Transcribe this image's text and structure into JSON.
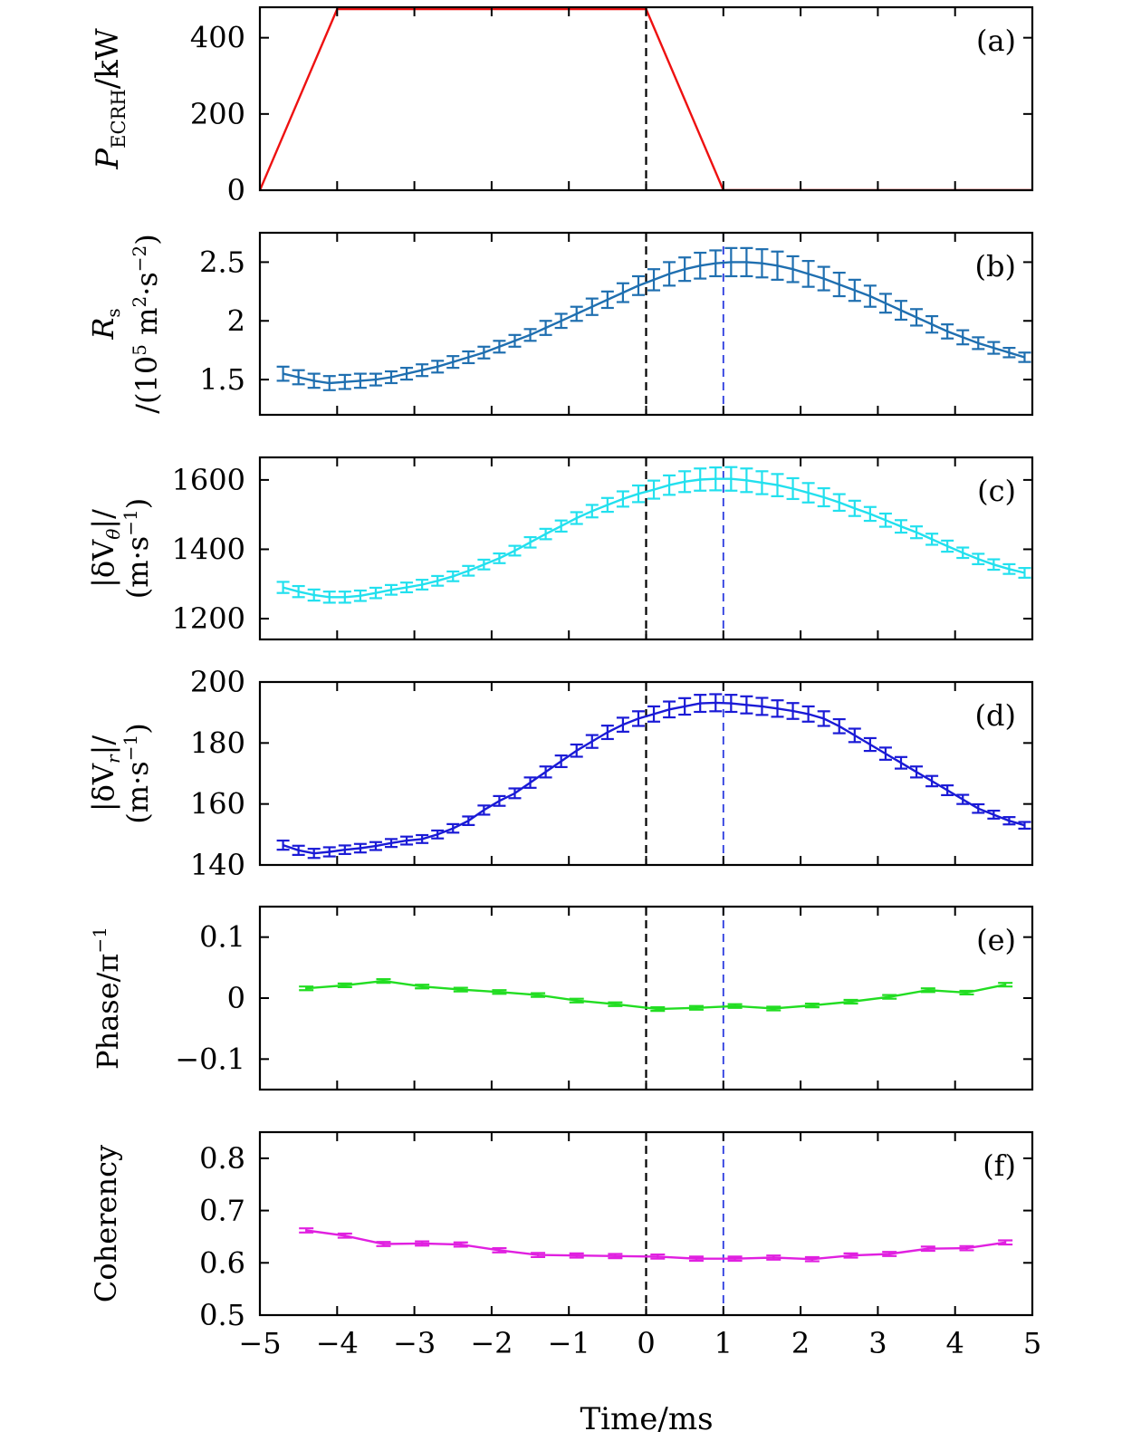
{
  "chart_data": [
    {
      "id": "a",
      "type": "line",
      "tag": "(a)",
      "ylabel": {
        "main": "P",
        "sub": "ECRH",
        "rest": "/kW"
      },
      "xlim": [
        -5,
        5
      ],
      "ylim": [
        0,
        480
      ],
      "yticks": [
        0,
        200,
        400
      ],
      "color": "#ee1111",
      "errorbars": false,
      "x": [
        -5,
        -4,
        0,
        1,
        5
      ],
      "y": [
        0,
        475,
        475,
        0,
        0
      ],
      "err": []
    },
    {
      "id": "b",
      "type": "line",
      "tag": "(b)",
      "ylabel": {
        "line1_main": "R",
        "line1_sub": "s",
        "line2": "/(10",
        "line2_exp": "5",
        "line2_rest": " m",
        "line2_exp2": "2",
        "line2_rest2": "·s",
        "line2_exp3": "−2",
        "line2_end": ")"
      },
      "xlim": [
        -5,
        5
      ],
      "ylim": [
        1.2,
        2.75
      ],
      "yticks": [
        1.5,
        2.0,
        2.5
      ],
      "color": "#1f6fb0",
      "errorbars": true,
      "x": [
        -4.7,
        -4.5,
        -4.3,
        -4.1,
        -3.9,
        -3.7,
        -3.5,
        -3.3,
        -3.1,
        -2.9,
        -2.7,
        -2.5,
        -2.3,
        -2.1,
        -1.9,
        -1.7,
        -1.5,
        -1.3,
        -1.1,
        -0.9,
        -0.7,
        -0.5,
        -0.3,
        -0.1,
        0.1,
        0.3,
        0.5,
        0.7,
        0.9,
        1.1,
        1.3,
        1.5,
        1.7,
        1.9,
        2.1,
        2.3,
        2.5,
        2.7,
        2.9,
        3.1,
        3.3,
        3.5,
        3.7,
        3.9,
        4.1,
        4.3,
        4.5,
        4.7,
        4.9
      ],
      "y": [
        1.55,
        1.52,
        1.49,
        1.47,
        1.48,
        1.49,
        1.5,
        1.52,
        1.55,
        1.58,
        1.61,
        1.65,
        1.69,
        1.73,
        1.78,
        1.83,
        1.88,
        1.94,
        2.0,
        2.06,
        2.12,
        2.18,
        2.24,
        2.3,
        2.35,
        2.4,
        2.44,
        2.47,
        2.49,
        2.5,
        2.5,
        2.49,
        2.47,
        2.44,
        2.4,
        2.36,
        2.31,
        2.26,
        2.21,
        2.15,
        2.09,
        2.03,
        1.97,
        1.91,
        1.86,
        1.81,
        1.77,
        1.73,
        1.69
      ],
      "err": [
        0.06,
        0.06,
        0.06,
        0.06,
        0.06,
        0.06,
        0.05,
        0.05,
        0.05,
        0.05,
        0.05,
        0.05,
        0.05,
        0.05,
        0.05,
        0.05,
        0.05,
        0.06,
        0.06,
        0.06,
        0.07,
        0.07,
        0.08,
        0.08,
        0.09,
        0.1,
        0.1,
        0.11,
        0.11,
        0.12,
        0.12,
        0.12,
        0.12,
        0.11,
        0.11,
        0.1,
        0.1,
        0.09,
        0.09,
        0.08,
        0.08,
        0.07,
        0.07,
        0.06,
        0.06,
        0.05,
        0.05,
        0.04,
        0.04
      ]
    },
    {
      "id": "c",
      "type": "line",
      "tag": "(c)",
      "ylabel": {
        "line1": "|δV",
        "line1_sub": "θ",
        "line1_end": "|/",
        "line2": "(m·s",
        "line2_exp": "−1",
        "line2_end": ")"
      },
      "xlim": [
        -5,
        5
      ],
      "ylim": [
        1140,
        1665
      ],
      "yticks": [
        1200,
        1400,
        1600
      ],
      "color": "#22e0ee",
      "errorbars": true,
      "x": [
        -4.7,
        -4.5,
        -4.3,
        -4.1,
        -3.9,
        -3.7,
        -3.5,
        -3.3,
        -3.1,
        -2.9,
        -2.7,
        -2.5,
        -2.3,
        -2.1,
        -1.9,
        -1.7,
        -1.5,
        -1.3,
        -1.1,
        -0.9,
        -0.7,
        -0.5,
        -0.3,
        -0.1,
        0.1,
        0.3,
        0.5,
        0.7,
        0.9,
        1.1,
        1.3,
        1.5,
        1.7,
        1.9,
        2.1,
        2.3,
        2.5,
        2.7,
        2.9,
        3.1,
        3.3,
        3.5,
        3.7,
        3.9,
        4.1,
        4.3,
        4.5,
        4.7,
        4.9
      ],
      "y": [
        1290,
        1278,
        1268,
        1262,
        1262,
        1266,
        1274,
        1283,
        1290,
        1298,
        1309,
        1322,
        1338,
        1356,
        1374,
        1396,
        1420,
        1444,
        1467,
        1490,
        1510,
        1528,
        1545,
        1560,
        1572,
        1585,
        1595,
        1601,
        1603,
        1603,
        1599,
        1592,
        1585,
        1575,
        1563,
        1550,
        1535,
        1518,
        1502,
        1484,
        1466,
        1449,
        1429,
        1409,
        1390,
        1372,
        1356,
        1343,
        1332
      ],
      "err": [
        16,
        16,
        16,
        16,
        16,
        15,
        15,
        14,
        14,
        14,
        14,
        14,
        14,
        14,
        14,
        14,
        15,
        15,
        16,
        17,
        18,
        20,
        22,
        24,
        26,
        28,
        30,
        32,
        33,
        34,
        34,
        33,
        32,
        30,
        28,
        26,
        24,
        22,
        20,
        19,
        18,
        17,
        16,
        16,
        15,
        15,
        15,
        14,
        14
      ]
    },
    {
      "id": "d",
      "type": "line",
      "tag": "(d)",
      "ylabel": {
        "line1": "|δV",
        "line1_sub": "r",
        "line1_end": "|/",
        "line2": "(m·s",
        "line2_exp": "−1",
        "line2_end": ")"
      },
      "xlim": [
        -5,
        5
      ],
      "ylim": [
        140,
        200
      ],
      "yticks": [
        140,
        160,
        180,
        200
      ],
      "color": "#1a1ad6",
      "errorbars": true,
      "x": [
        -4.7,
        -4.5,
        -4.3,
        -4.1,
        -3.9,
        -3.7,
        -3.5,
        -3.3,
        -3.1,
        -2.9,
        -2.7,
        -2.5,
        -2.3,
        -2.1,
        -1.9,
        -1.7,
        -1.5,
        -1.3,
        -1.1,
        -0.9,
        -0.7,
        -0.5,
        -0.3,
        -0.1,
        0.1,
        0.3,
        0.5,
        0.7,
        0.9,
        1.1,
        1.3,
        1.5,
        1.7,
        1.9,
        2.1,
        2.3,
        2.5,
        2.7,
        2.9,
        3.1,
        3.3,
        3.5,
        3.7,
        3.9,
        4.1,
        4.3,
        4.5,
        4.7,
        4.9
      ],
      "y": [
        146.5,
        144.8,
        143.8,
        144.3,
        145.0,
        145.5,
        146.2,
        147.2,
        148.0,
        148.5,
        150.0,
        152.0,
        154.5,
        158.0,
        161.0,
        163.5,
        167.0,
        170.5,
        174.0,
        177.5,
        180.5,
        183.5,
        186.0,
        188.0,
        189.5,
        191.0,
        192.0,
        193.0,
        193.2,
        193.0,
        192.5,
        192.0,
        191.3,
        190.5,
        189.5,
        188.0,
        185.5,
        182.5,
        179.5,
        176.5,
        173.5,
        170.5,
        167.5,
        164.5,
        161.5,
        158.5,
        156.5,
        154.5,
        153.0
      ],
      "err": [
        1.5,
        1.5,
        1.5,
        1.5,
        1.4,
        1.4,
        1.3,
        1.3,
        1.3,
        1.3,
        1.3,
        1.4,
        1.4,
        1.5,
        1.6,
        1.6,
        1.7,
        1.8,
        1.9,
        2.0,
        2.1,
        2.2,
        2.3,
        2.4,
        2.5,
        2.6,
        2.7,
        2.8,
        2.8,
        2.8,
        2.8,
        2.8,
        2.7,
        2.6,
        2.5,
        2.4,
        2.3,
        2.2,
        2.1,
        2.0,
        1.9,
        1.8,
        1.7,
        1.6,
        1.5,
        1.4,
        1.3,
        1.2,
        1.1
      ]
    },
    {
      "id": "e",
      "type": "line",
      "tag": "(e)",
      "ylabel": {
        "line1": "Phase/π",
        "line1_exp": "−1"
      },
      "xlim": [
        -5,
        5
      ],
      "ylim": [
        -0.15,
        0.15
      ],
      "yticks": [
        -0.1,
        0,
        0.1
      ],
      "ytick_labels": [
        "−0.1",
        "0",
        "0.1"
      ],
      "color": "#22dd22",
      "errorbars": true,
      "x": [
        -4.4,
        -3.9,
        -3.4,
        -2.9,
        -2.4,
        -1.9,
        -1.4,
        -0.9,
        -0.4,
        0.15,
        0.65,
        1.15,
        1.65,
        2.15,
        2.65,
        3.15,
        3.65,
        4.15,
        4.65
      ],
      "y": [
        0.016,
        0.021,
        0.028,
        0.019,
        0.014,
        0.01,
        0.005,
        -0.004,
        -0.01,
        -0.018,
        -0.016,
        -0.013,
        -0.017,
        -0.012,
        -0.006,
        0.002,
        0.013,
        0.009,
        0.022
      ],
      "err": [
        0.003,
        0.003,
        0.003,
        0.003,
        0.003,
        0.003,
        0.003,
        0.003,
        0.003,
        0.003,
        0.003,
        0.003,
        0.003,
        0.003,
        0.003,
        0.003,
        0.003,
        0.003,
        0.003
      ]
    },
    {
      "id": "f",
      "type": "line",
      "tag": "(f)",
      "ylabel": {
        "line1": "Coherency"
      },
      "xlim": [
        -5,
        5
      ],
      "ylim": [
        0.5,
        0.85
      ],
      "yticks": [
        0.5,
        0.6,
        0.7,
        0.8
      ],
      "color": "#e020e0",
      "errorbars": true,
      "x": [
        -4.4,
        -3.9,
        -3.4,
        -2.9,
        -2.4,
        -1.9,
        -1.4,
        -0.9,
        -0.4,
        0.15,
        0.65,
        1.15,
        1.65,
        2.15,
        2.65,
        3.15,
        3.65,
        4.15,
        4.65
      ],
      "y": [
        0.662,
        0.652,
        0.636,
        0.637,
        0.635,
        0.624,
        0.615,
        0.614,
        0.613,
        0.612,
        0.608,
        0.608,
        0.61,
        0.607,
        0.614,
        0.617,
        0.627,
        0.628,
        0.639
      ],
      "err": [
        0.004,
        0.004,
        0.004,
        0.004,
        0.004,
        0.004,
        0.004,
        0.004,
        0.004,
        0.004,
        0.004,
        0.004,
        0.004,
        0.004,
        0.004,
        0.004,
        0.004,
        0.004,
        0.004
      ]
    }
  ],
  "shared": {
    "xticks": [
      -5,
      -4,
      -3,
      -2,
      -1,
      0,
      1,
      2,
      3,
      4,
      5
    ],
    "xtick_labels": [
      "−5",
      "−4",
      "−3",
      "−2",
      "−1",
      "0",
      "1",
      "2",
      "3",
      "4",
      "5"
    ],
    "xlabel": "Time/ms",
    "vline_black_x": 0,
    "vline_blue_x": 1,
    "vline_black_color": "#000000",
    "vline_blue_color": "#2a3adf"
  }
}
